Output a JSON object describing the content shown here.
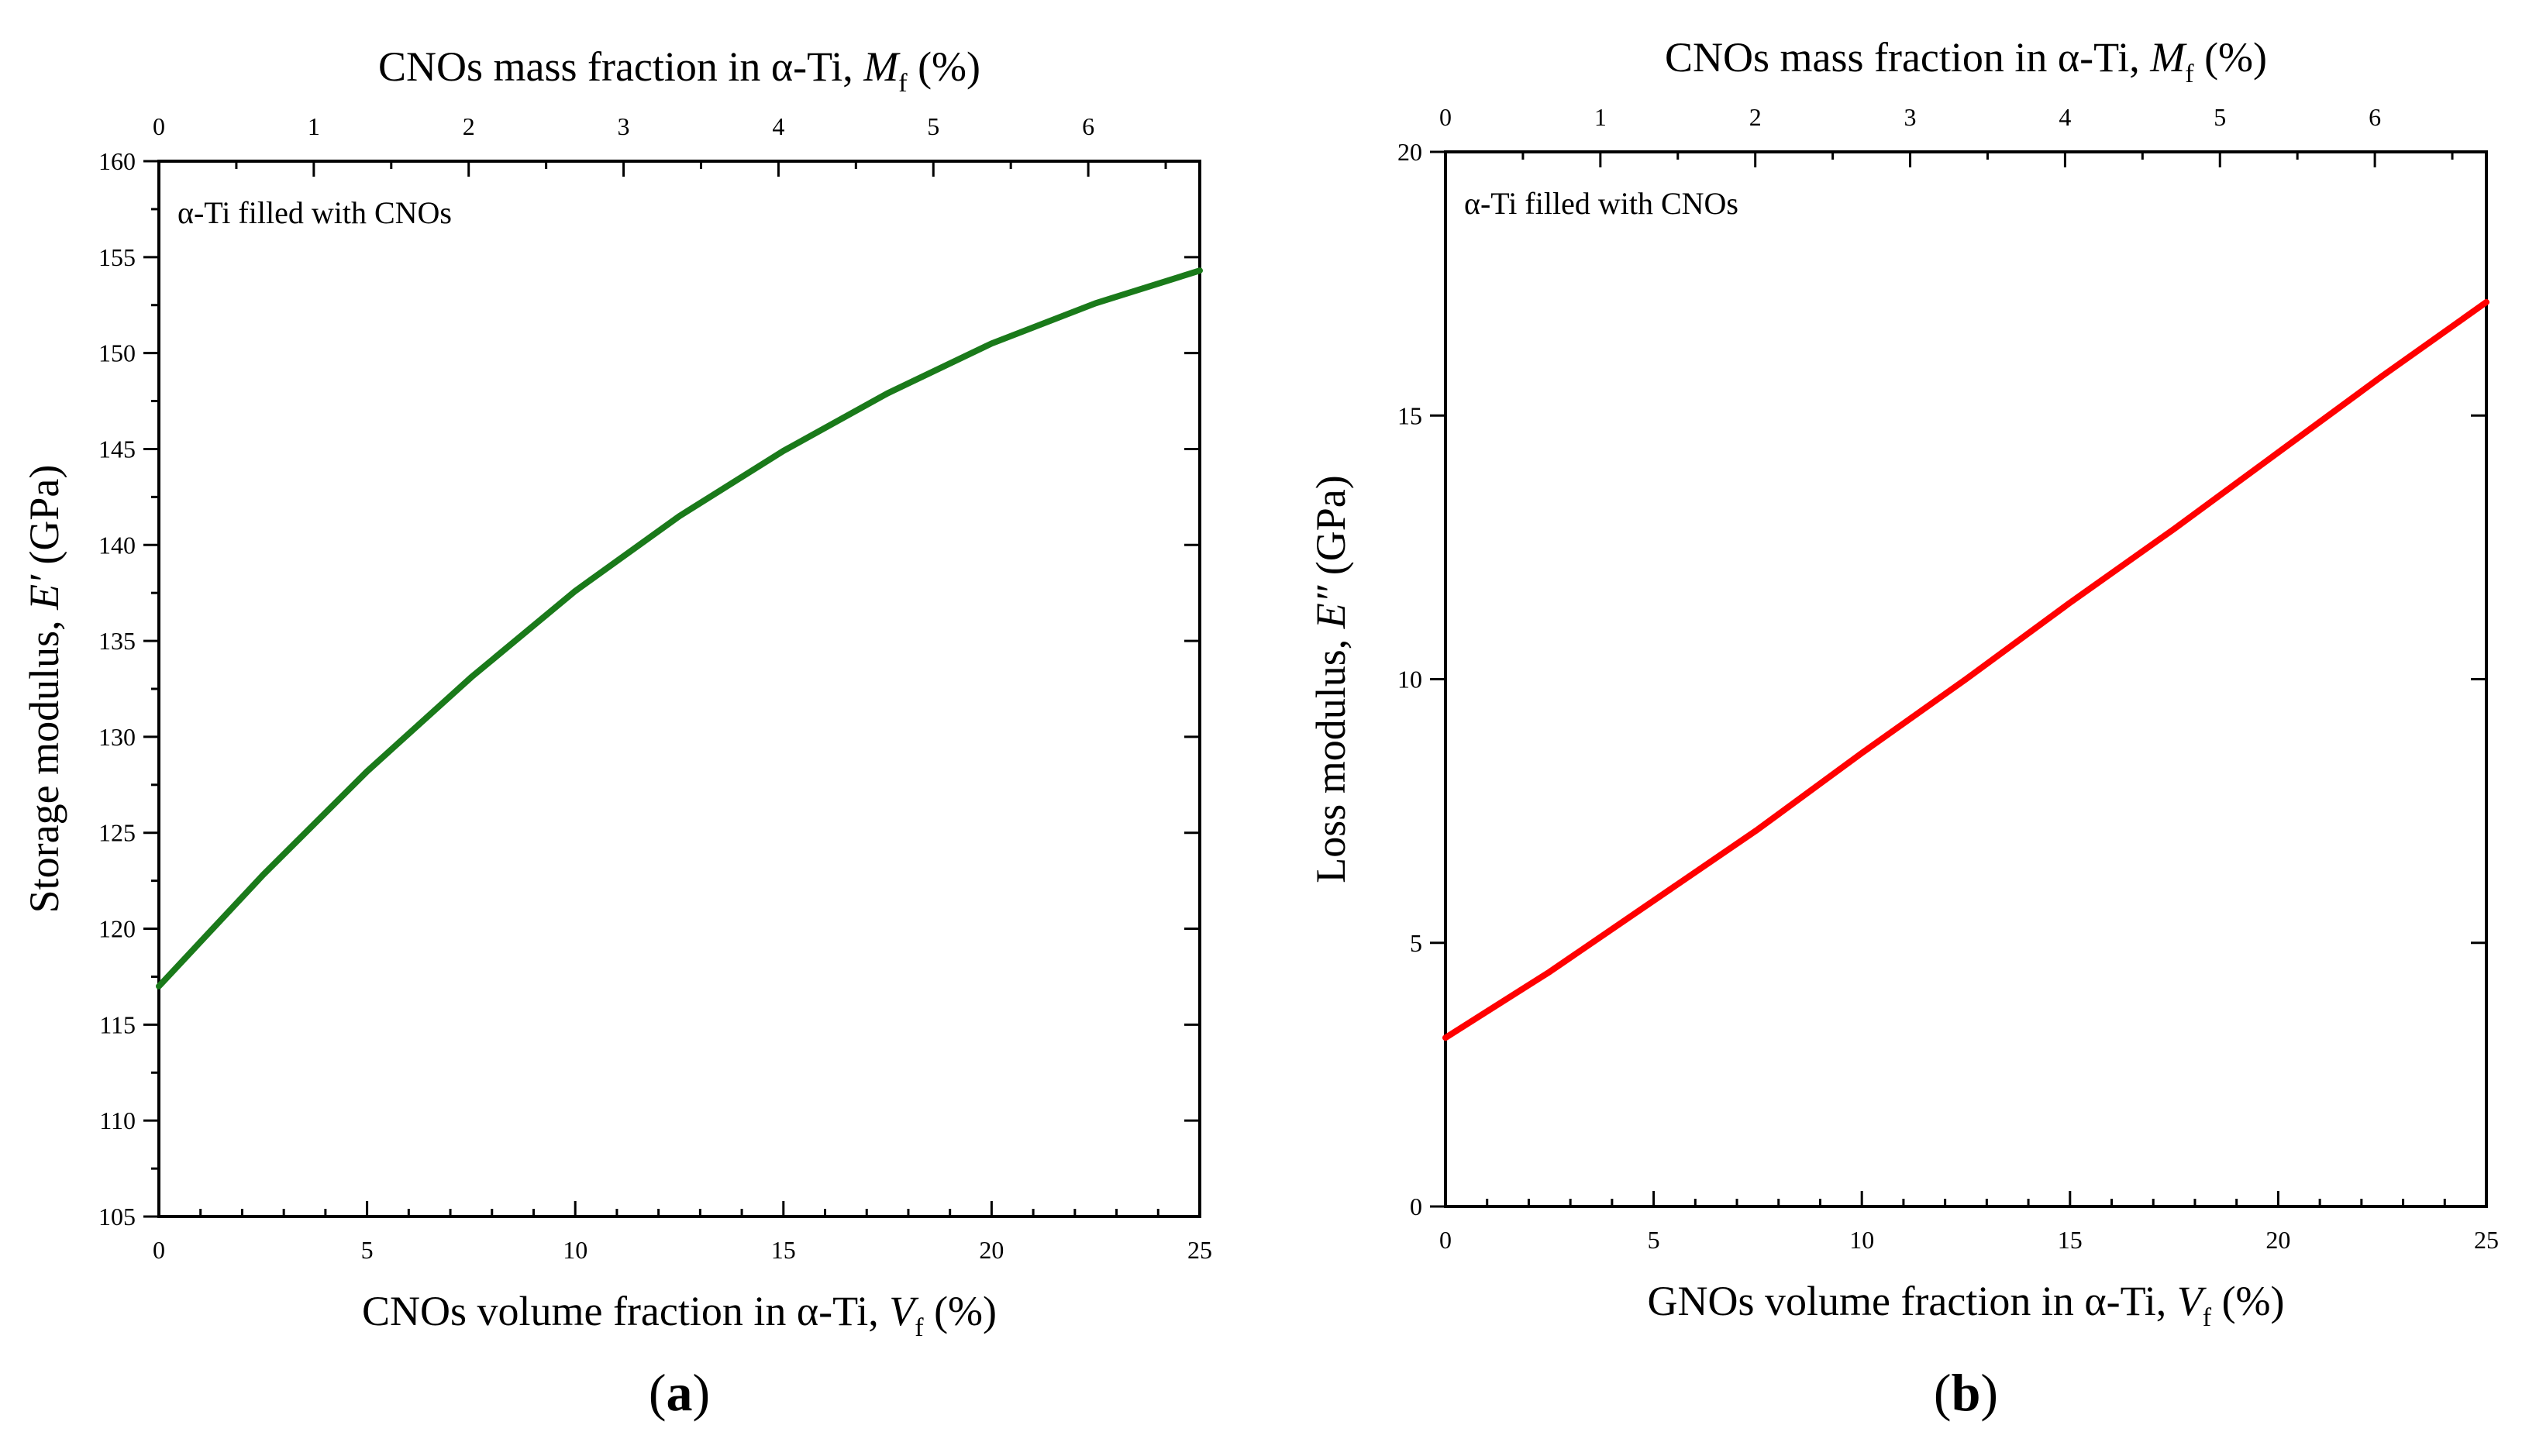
{
  "chart_data": [
    {
      "type": "line",
      "panel_label": "a",
      "annotation": "α-Ti filled with CNOs",
      "xlabel": {
        "prefix": "CNOs volume fraction in α-Ti, ",
        "var": "V",
        "sub": "f",
        "suffix": " (%)"
      },
      "ylabel": {
        "prefix": "Storage modulus, ",
        "var": "E′",
        "suffix": " (GPa)"
      },
      "x2label": {
        "prefix": "CNOs mass fraction in α-Ti, ",
        "var": "M",
        "sub": "f",
        "suffix": " (%)"
      },
      "xlim": [
        0,
        25
      ],
      "ylim": [
        105,
        160
      ],
      "x2lim": [
        0,
        6.72
      ],
      "xticks": [
        0,
        5,
        10,
        15,
        20,
        25
      ],
      "yticks": [
        105,
        110,
        115,
        120,
        125,
        130,
        135,
        140,
        145,
        150,
        155,
        160
      ],
      "x2ticks": [
        0,
        1,
        2,
        3,
        4,
        5,
        6
      ],
      "series": [
        {
          "name": "Storage modulus",
          "color": "#1a7a1a",
          "x": [
            0,
            2.5,
            5,
            7.5,
            10,
            12.5,
            15,
            17.5,
            20,
            22.5,
            25
          ],
          "y": [
            117,
            122.8,
            128.2,
            133.1,
            137.6,
            141.5,
            144.9,
            147.9,
            150.5,
            152.6,
            154.3
          ]
        }
      ]
    },
    {
      "type": "line",
      "panel_label": "b",
      "annotation": "α-Ti filled with CNOs",
      "xlabel": {
        "prefix": "GNOs volume fraction in α-Ti, ",
        "var": "V",
        "sub": "f",
        "suffix": " (%)"
      },
      "ylabel": {
        "prefix": "Loss modulus, ",
        "var": "E″",
        "suffix": " (GPa)"
      },
      "x2label": {
        "prefix": "CNOs mass fraction in α-Ti, ",
        "var": "M",
        "sub": "f",
        "suffix": " (%)"
      },
      "xlim": [
        0,
        25
      ],
      "ylim": [
        0,
        20
      ],
      "x2lim": [
        0,
        6.72
      ],
      "xticks": [
        0,
        5,
        10,
        15,
        20,
        25
      ],
      "yticks": [
        0,
        5,
        10,
        15,
        20
      ],
      "x2ticks": [
        0,
        1,
        2,
        3,
        4,
        5,
        6
      ],
      "series": [
        {
          "name": "Loss modulus",
          "color": "#ff0000",
          "x": [
            0,
            2.5,
            5,
            7.5,
            10,
            12.5,
            15,
            17.5,
            20,
            22.5,
            25
          ],
          "y": [
            3.2,
            4.45,
            5.8,
            7.15,
            8.6,
            10.0,
            11.45,
            12.85,
            14.3,
            15.75,
            17.15
          ]
        }
      ]
    }
  ]
}
